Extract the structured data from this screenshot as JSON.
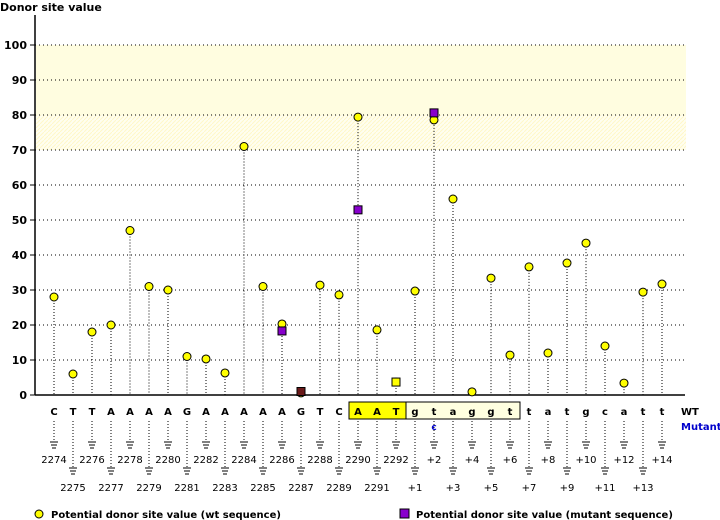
{
  "chart_data": {
    "type": "scatter",
    "title": "",
    "ylabel": "Donor site value",
    "ylim": [
      0,
      100
    ],
    "yticks": [
      0,
      10,
      20,
      30,
      40,
      50,
      60,
      70,
      80,
      90,
      100
    ],
    "grid": true,
    "threshold_band": {
      "strong": [
        80,
        100
      ],
      "weak": [
        70,
        80
      ],
      "color": "#fffde0"
    },
    "positions": [
      "2274",
      "2275",
      "2276",
      "2277",
      "2278",
      "2279",
      "2280",
      "2281",
      "2282",
      "2283",
      "2284",
      "2285",
      "2286",
      "2287",
      "2288",
      "2289",
      "2290",
      "2291",
      "2292",
      "+1",
      "+2",
      "+3",
      "+4",
      "+5",
      "+6",
      "+7",
      "+8",
      "+9",
      "+10",
      "+11",
      "+12",
      "+13",
      "+14"
    ],
    "wt_sequence": [
      "C",
      "T",
      "T",
      "A",
      "A",
      "A",
      "A",
      "G",
      "A",
      "A",
      "A",
      "A",
      "A",
      "G",
      "T",
      "C",
      "A",
      "A",
      "T",
      "g",
      "t",
      "a",
      "g",
      "g",
      "t",
      "t",
      "a",
      "t",
      "g",
      "c",
      "a",
      "t",
      "t"
    ],
    "mutant_sequence": [
      "",
      "",
      "",
      "",
      "",
      "",
      "",
      "",
      "",
      "",
      "",
      "",
      "",
      "",
      "",
      "",
      "",
      "",
      "",
      "",
      "c",
      "",
      "",
      "",
      "",
      "",
      "",
      "",
      "",
      "",
      "",
      "",
      ""
    ],
    "row_labels": {
      "wt": "WT",
      "mutant": "Mutant"
    },
    "series": [
      {
        "name": "Potential donor site value (wt sequence)",
        "marker": "circle",
        "color": "#ffff00",
        "values": [
          28,
          6,
          18,
          20,
          47,
          31,
          30,
          11,
          10.3,
          6.3,
          71,
          31,
          20.3,
          0.6,
          31.4,
          28.6,
          79.4,
          18.6,
          3.7,
          29.7,
          78.6,
          56,
          0.9,
          33.4,
          11.4,
          36.6,
          12,
          37.7,
          43.4,
          14,
          3.4,
          29.4,
          31.7
        ]
      },
      {
        "name": "Potential donor site value (mutant sequence)",
        "marker": "square",
        "color": "#8800cc",
        "values": [
          null,
          null,
          null,
          null,
          null,
          null,
          null,
          null,
          null,
          null,
          null,
          null,
          18.3,
          1,
          null,
          null,
          52.9,
          null,
          3.7,
          null,
          80.6,
          null,
          null,
          null,
          null,
          null,
          null,
          null,
          null,
          null,
          null,
          null,
          null
        ]
      }
    ],
    "legend_placement": "bottom",
    "colors": {
      "exon_box": "#ffff00",
      "intron_box": "#ffffe0",
      "mutant_text": "#0000cc"
    }
  }
}
